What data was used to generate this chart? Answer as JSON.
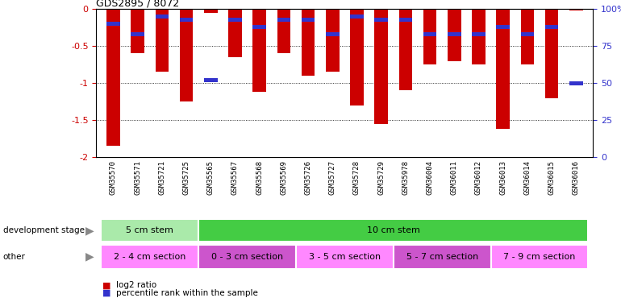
{
  "title": "GDS2895 / 8072",
  "samples": [
    "GSM35570",
    "GSM35571",
    "GSM35721",
    "GSM35725",
    "GSM35565",
    "GSM35567",
    "GSM35568",
    "GSM35569",
    "GSM35726",
    "GSM35727",
    "GSM35728",
    "GSM35729",
    "GSM35978",
    "GSM36004",
    "GSM36011",
    "GSM36012",
    "GSM36013",
    "GSM36014",
    "GSM36015",
    "GSM36016"
  ],
  "log2_ratio": [
    -1.85,
    -0.6,
    -0.85,
    -1.25,
    -0.05,
    -0.65,
    -1.12,
    -0.6,
    -0.9,
    -0.85,
    -1.3,
    -1.55,
    -1.1,
    -0.75,
    -0.7,
    -0.75,
    -1.62,
    -0.75,
    -1.2,
    -0.02
  ],
  "percentile": [
    10,
    17,
    5,
    7,
    48,
    7,
    12,
    7,
    7,
    17,
    5,
    7,
    7,
    17,
    17,
    17,
    12,
    17,
    12,
    50
  ],
  "dev_stage_groups": [
    {
      "label": "5 cm stem",
      "start": 0,
      "end": 4,
      "color": "#aaeaaa"
    },
    {
      "label": "10 cm stem",
      "start": 4,
      "end": 20,
      "color": "#44cc44"
    }
  ],
  "other_groups": [
    {
      "label": "2 - 4 cm section",
      "start": 0,
      "end": 4,
      "color": "#ff88ff"
    },
    {
      "label": "0 - 3 cm section",
      "start": 4,
      "end": 8,
      "color": "#cc55cc"
    },
    {
      "label": "3 - 5 cm section",
      "start": 8,
      "end": 12,
      "color": "#ff88ff"
    },
    {
      "label": "5 - 7 cm section",
      "start": 12,
      "end": 16,
      "color": "#cc55cc"
    },
    {
      "label": "7 - 9 cm section",
      "start": 16,
      "end": 20,
      "color": "#ff88ff"
    }
  ],
  "ylim_left": [
    -2.0,
    0.0
  ],
  "ylim_right": [
    0,
    100
  ],
  "yticks_left": [
    0.0,
    -0.5,
    -1.0,
    -1.5,
    -2.0
  ],
  "yticklabels_left": [
    "0",
    "-0.5",
    "-1",
    "-1.5",
    "-2"
  ],
  "yticks_right": [
    0,
    25,
    50,
    75,
    100
  ],
  "yticklabels_right": [
    "0",
    "25",
    "50",
    "75",
    "100%"
  ],
  "bar_color": "#cc0000",
  "dot_color": "#3333cc",
  "tick_label_color": "#cc0000",
  "right_tick_color": "#3333cc",
  "bar_width": 0.55,
  "legend_red": "log2 ratio",
  "legend_blue": "percentile rank within the sample",
  "dev_stage_label": "development stage",
  "other_label": "other",
  "arrow_color": "#888888"
}
